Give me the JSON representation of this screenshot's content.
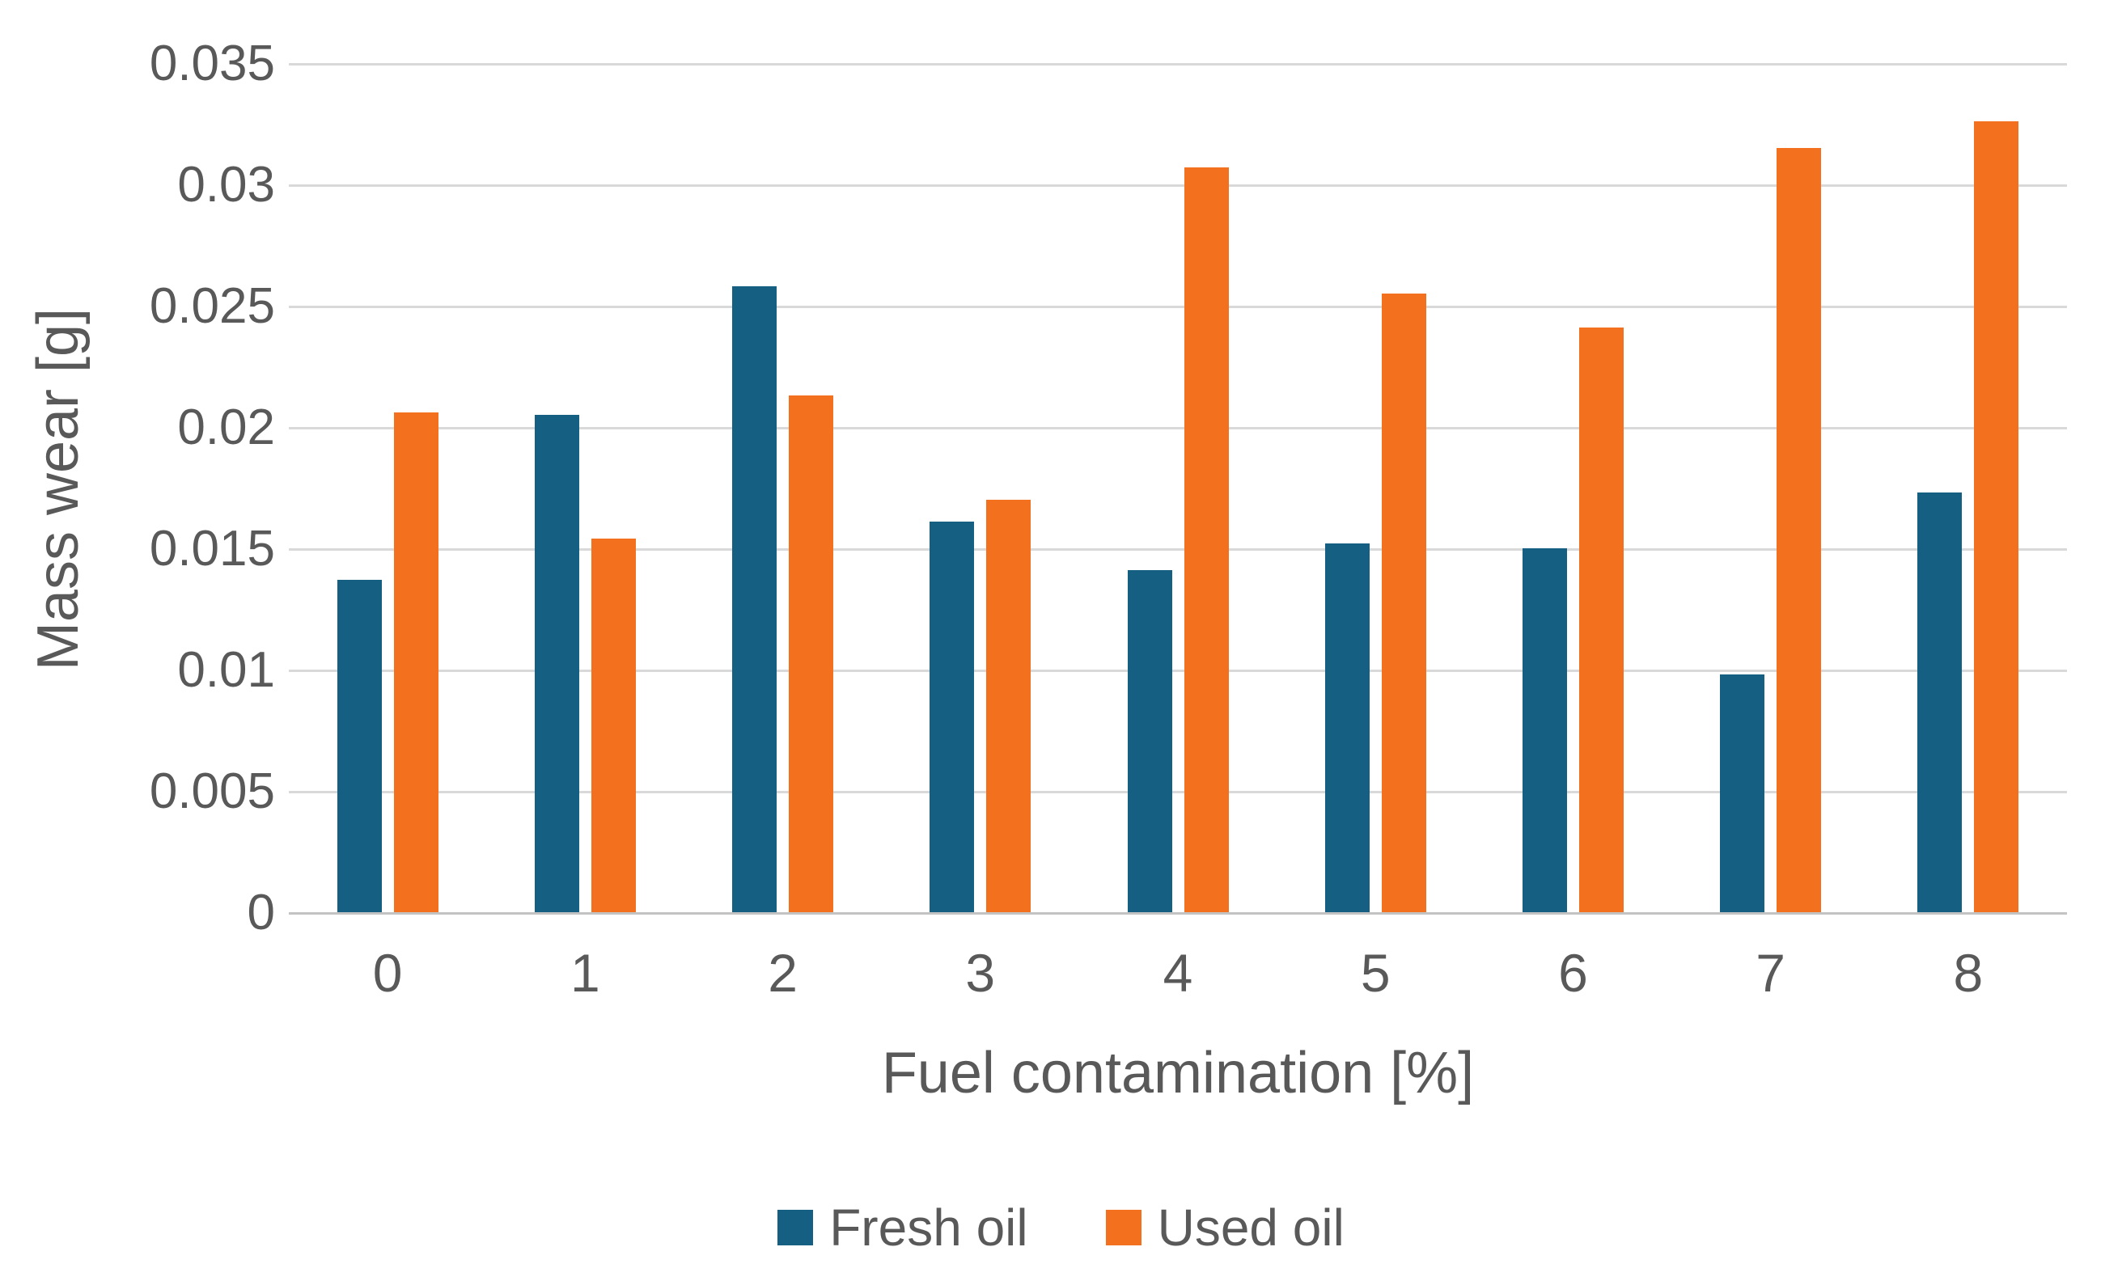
{
  "chart_data": {
    "type": "bar",
    "title": "",
    "categories": [
      "0",
      "1",
      "2",
      "3",
      "4",
      "5",
      "6",
      "7",
      "8"
    ],
    "series": [
      {
        "name": "Fresh oil",
        "color": "#156082",
        "values": [
          0.0137,
          0.0205,
          0.0258,
          0.0161,
          0.0141,
          0.0152,
          0.015,
          0.0098,
          0.0173
        ]
      },
      {
        "name": "Used oil",
        "color": "#F3711E",
        "values": [
          0.0206,
          0.0154,
          0.0213,
          0.017,
          0.0307,
          0.0255,
          0.0241,
          0.0315,
          0.0326
        ]
      }
    ],
    "xlabel": "Fuel contamination [%]",
    "ylabel": "Mass wear [g]",
    "ylim": [
      0,
      0.035
    ],
    "ytick_step": 0.005,
    "ytick_labels": [
      "0",
      "0.005",
      "0.01",
      "0.015",
      "0.02",
      "0.025",
      "0.03",
      "0.035"
    ],
    "grid": "horizontal-on",
    "legend_position": "bottom-center"
  },
  "styles": {
    "background": "#ffffff",
    "gridline_color": "#d9d9d9",
    "axis_line_color": "#c3c3c3",
    "text_color": "#595959",
    "fresh_oil_color": "#156082",
    "used_oil_color": "#F3711E"
  }
}
